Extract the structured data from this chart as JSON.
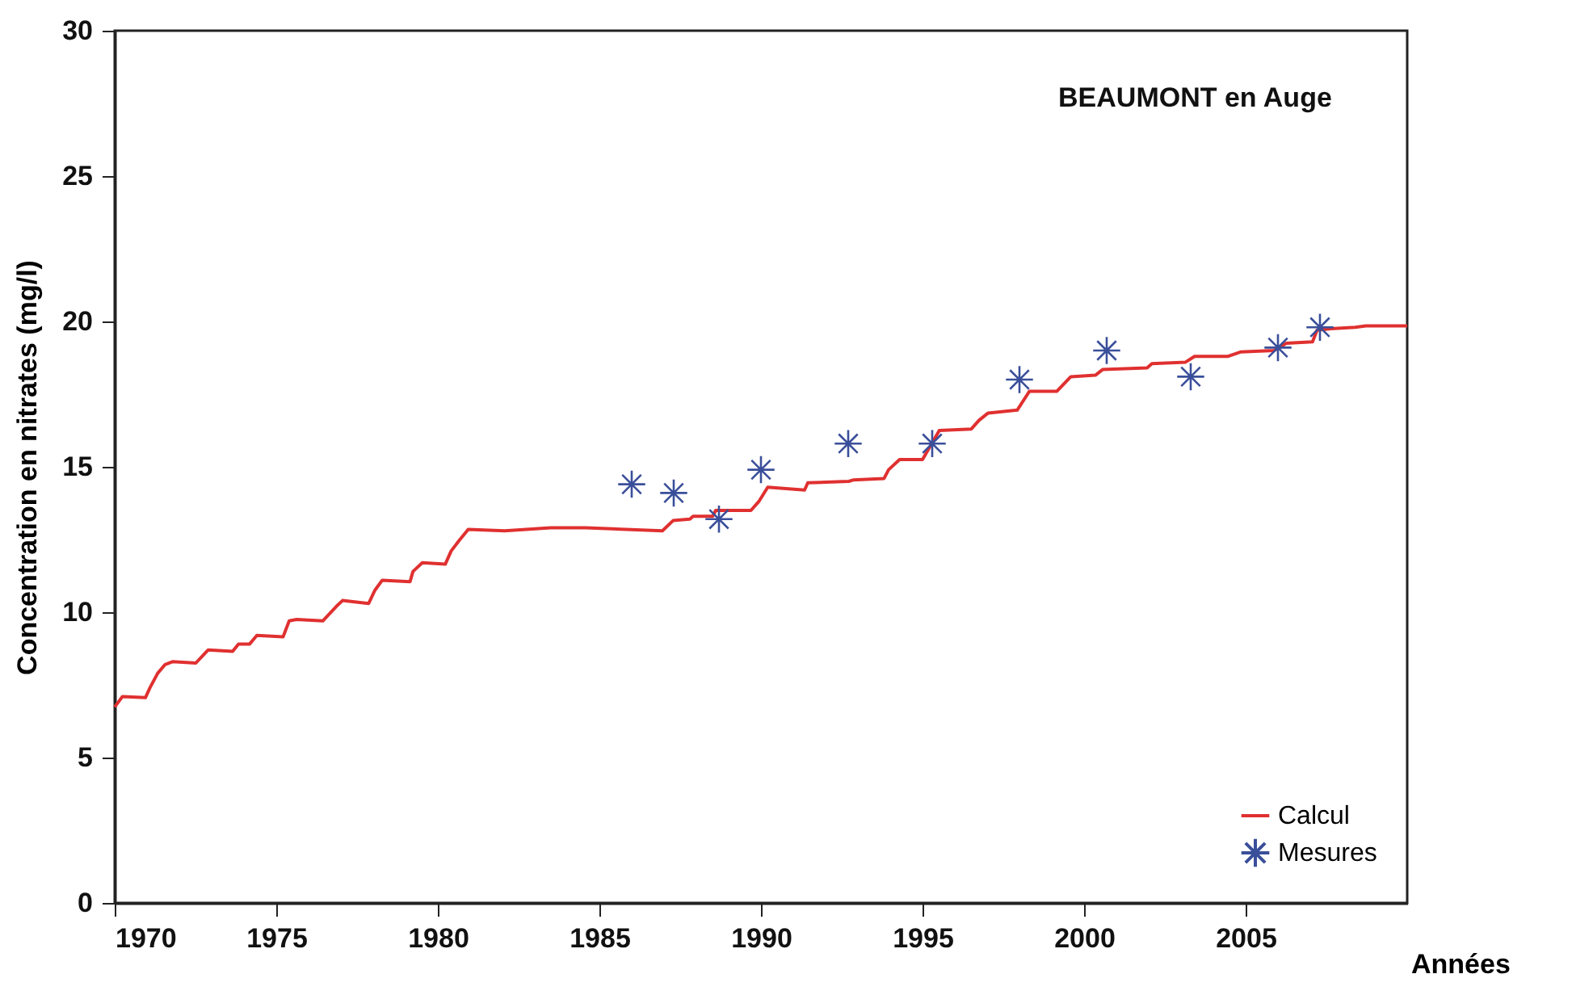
{
  "chart_data": {
    "type": "line",
    "title": "BEAUMONT en Auge",
    "xlabel": "Années",
    "ylabel": "Concentration en nitrates (mg/l)",
    "xlim": [
      1970,
      2010
    ],
    "xticks": [
      1970,
      1975,
      1980,
      1985,
      1990,
      1995,
      2000,
      2005
    ],
    "ylim": [
      0,
      30
    ],
    "yticks": [
      0,
      5,
      10,
      15,
      20,
      25,
      30
    ],
    "grid": false,
    "legend": "bottom right",
    "series": [
      {
        "name": "Calcul",
        "color": "#e03030",
        "marker": "none",
        "line_style": "solid",
        "x": [
          1970.0,
          1970.24,
          1970.95,
          1971.09,
          1971.33,
          1971.56,
          1971.8,
          1972.51,
          1972.89,
          1973.65,
          1973.83,
          1974.17,
          1974.4,
          1975.21,
          1975.4,
          1975.63,
          1976.44,
          1976.86,
          1977.05,
          1977.86,
          1978.05,
          1978.28,
          1979.14,
          1979.23,
          1979.52,
          1980.23,
          1980.41,
          1980.65,
          1980.94,
          1982.07,
          1983.49,
          1984.58,
          1986.95,
          1987.28,
          1987.8,
          1987.9,
          1988.51,
          1988.6,
          1989.69,
          1989.93,
          1990.21,
          1991.35,
          1991.45,
          1992.72,
          1992.87,
          1993.81,
          1993.95,
          1994.29,
          1995.0,
          1995.52,
          1996.51,
          1996.75,
          1997.03,
          1997.93,
          1998.31,
          1999.16,
          1999.59,
          2000.35,
          2000.58,
          2001.95,
          2002.1,
          2003.14,
          2003.42,
          2004.46,
          2004.84,
          2005.88,
          2006.26,
          2007.07,
          2007.21,
          2007.64,
          2008.39,
          2008.72,
          2010.0
        ],
        "values": [
          6.74,
          7.1,
          7.06,
          7.4,
          7.9,
          8.2,
          8.3,
          8.25,
          8.7,
          8.65,
          8.9,
          8.9,
          9.2,
          9.15,
          9.7,
          9.75,
          9.7,
          10.2,
          10.4,
          10.3,
          10.75,
          11.1,
          11.05,
          11.4,
          11.7,
          11.65,
          12.1,
          12.45,
          12.85,
          12.8,
          12.9,
          12.9,
          12.8,
          13.15,
          13.2,
          13.3,
          13.3,
          13.5,
          13.5,
          13.8,
          14.3,
          14.2,
          14.45,
          14.5,
          14.55,
          14.6,
          14.9,
          15.25,
          15.25,
          16.25,
          16.3,
          16.6,
          16.85,
          16.95,
          17.6,
          17.6,
          18.1,
          18.15,
          18.35,
          18.4,
          18.55,
          18.6,
          18.8,
          18.8,
          18.95,
          19.0,
          19.25,
          19.3,
          19.7,
          19.75,
          19.8,
          19.85,
          19.85
        ]
      },
      {
        "name": "Mesures",
        "type": "scatter",
        "color": "#3a4f9a",
        "marker": "cross",
        "x": [
          1986.0,
          1987.3,
          1988.7,
          1990.0,
          1992.7,
          1995.3,
          1998.0,
          2000.7,
          2003.3,
          2006.0,
          2007.3
        ],
        "values": [
          14.4,
          14.1,
          13.2,
          14.9,
          15.8,
          15.8,
          18.0,
          19.0,
          18.1,
          19.1,
          19.8
        ]
      }
    ]
  }
}
